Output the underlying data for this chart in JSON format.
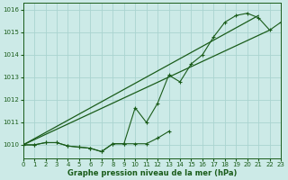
{
  "title": "Graphe pression niveau de la mer (hPa)",
  "background_color": "#cceae7",
  "grid_color": "#aad4d0",
  "line_color": "#1a5c1a",
  "x_min": 0,
  "x_max": 23,
  "y_min": 1009.4,
  "y_max": 1016.3,
  "yticks": [
    1010,
    1011,
    1012,
    1013,
    1014,
    1015,
    1016
  ],
  "xticks": [
    0,
    1,
    2,
    3,
    4,
    5,
    6,
    7,
    8,
    9,
    10,
    11,
    12,
    13,
    14,
    15,
    16,
    17,
    18,
    19,
    20,
    21,
    22,
    23
  ],
  "series_flat_x": [
    0,
    1,
    2,
    3,
    4,
    5,
    6,
    7,
    8,
    9,
    10,
    11,
    12,
    13
  ],
  "series_flat_y": [
    1010.0,
    1010.0,
    1010.1,
    1010.1,
    1009.95,
    1009.9,
    1009.85,
    1009.7,
    1010.05,
    1010.05,
    1010.05,
    1010.05,
    1010.3,
    1010.6
  ],
  "series_wavy_x": [
    0,
    1,
    2,
    3,
    4,
    5,
    6,
    7,
    8,
    9,
    10,
    11,
    12,
    13,
    14,
    15,
    16,
    17,
    18,
    19,
    20,
    21,
    22,
    23
  ],
  "series_wavy_y": [
    1010.0,
    1010.0,
    1010.1,
    1010.1,
    1009.95,
    1009.9,
    1009.85,
    1009.7,
    1010.05,
    1010.05,
    1011.65,
    1011.0,
    1011.85,
    1013.1,
    1012.8,
    1013.6,
    1014.0,
    1014.8,
    1015.45,
    1015.75,
    1015.85,
    1015.65,
    1015.1,
    1015.45
  ],
  "line1_x": [
    0,
    21
  ],
  "line1_y": [
    1010.0,
    1015.75
  ],
  "line2_x": [
    0,
    22
  ],
  "line2_y": [
    1010.0,
    1015.1
  ]
}
